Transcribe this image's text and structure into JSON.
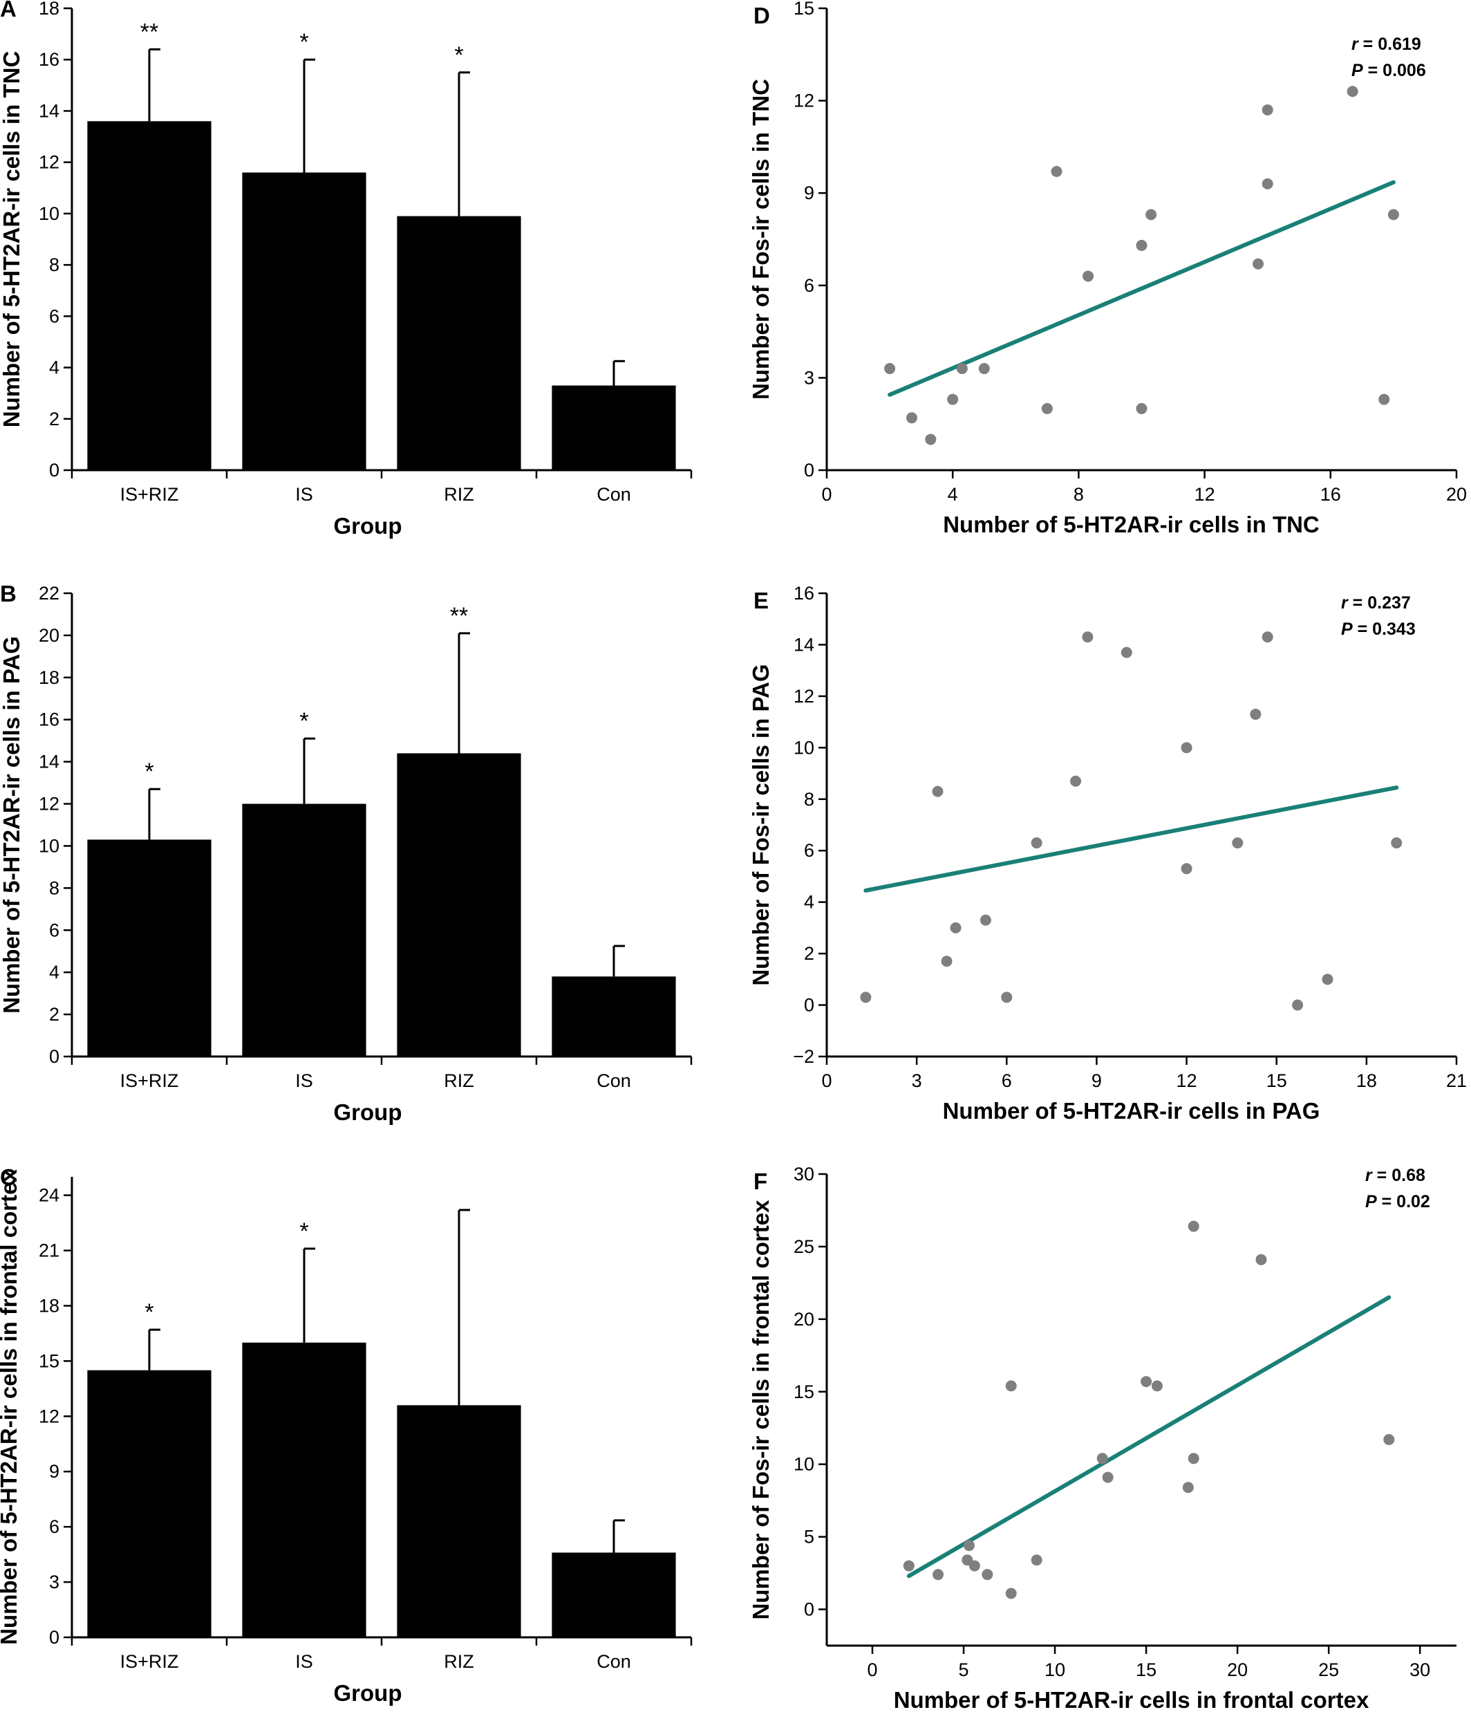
{
  "chart_data": [
    {
      "panel": "A",
      "type": "bar",
      "xlabel": "Group",
      "ylabel": "Number of 5-HT2AR-ir cells in TNC",
      "categories": [
        "IS+RIZ",
        "IS",
        "RIZ",
        "Con"
      ],
      "values": [
        13.6,
        11.6,
        9.9,
        3.3
      ],
      "errors": [
        2.8,
        4.4,
        5.6,
        0.95
      ],
      "significance": [
        "**",
        "*",
        "*",
        ""
      ],
      "ylim": [
        0,
        18
      ],
      "yticks": [
        "0",
        "2",
        "4",
        "6",
        "8",
        "10",
        "12",
        "14",
        "16",
        "18"
      ]
    },
    {
      "panel": "B",
      "type": "bar",
      "xlabel": "Group",
      "ylabel": "Number of 5-HT2AR-ir cells in PAG",
      "categories": [
        "IS+RIZ",
        "IS",
        "RIZ",
        "Con"
      ],
      "values": [
        10.3,
        12.0,
        14.4,
        3.8
      ],
      "errors": [
        2.4,
        3.1,
        5.7,
        1.45
      ],
      "significance": [
        "*",
        "*",
        "**",
        ""
      ],
      "ylim": [
        0,
        22
      ],
      "yticks": [
        "0",
        "2",
        "4",
        "6",
        "8",
        "10",
        "12",
        "14",
        "16",
        "18",
        "20",
        "22"
      ]
    },
    {
      "panel": "C",
      "type": "bar",
      "xlabel": "Group",
      "ylabel": "Number of 5-HT2AR-ir cells in frontal cortex",
      "categories": [
        "IS+RIZ",
        "IS",
        "RIZ",
        "Con"
      ],
      "values": [
        14.5,
        16.0,
        12.6,
        4.6
      ],
      "errors": [
        2.2,
        5.1,
        10.6,
        1.75
      ],
      "significance": [
        "*",
        "*",
        "",
        ""
      ],
      "ylim": [
        0,
        25
      ],
      "yticks": [
        "0",
        "3",
        "6",
        "9",
        "12",
        "15",
        "18",
        "21",
        "24"
      ]
    },
    {
      "panel": "D",
      "type": "scatter",
      "xlabel": "Number of 5-HT2AR-ir cells in TNC",
      "ylabel": "Number of Fos-ir cells in TNC",
      "xlim": [
        0,
        20
      ],
      "ylim": [
        0,
        15
      ],
      "xticks": [
        "0",
        "4",
        "8",
        "12",
        "16",
        "20"
      ],
      "yticks": [
        "0",
        "3",
        "6",
        "9",
        "12",
        "15"
      ],
      "points": [
        [
          2.0,
          3.3
        ],
        [
          2.7,
          1.7
        ],
        [
          3.3,
          1.0
        ],
        [
          4.0,
          2.3
        ],
        [
          4.3,
          3.3
        ],
        [
          5.0,
          3.3
        ],
        [
          7.0,
          2.0
        ],
        [
          7.3,
          9.7
        ],
        [
          8.3,
          6.3
        ],
        [
          10.0,
          7.3
        ],
        [
          10.0,
          2.0
        ],
        [
          10.3,
          8.3
        ],
        [
          13.7,
          6.7
        ],
        [
          14.0,
          11.7
        ],
        [
          14.0,
          9.3
        ],
        [
          16.7,
          12.3
        ],
        [
          17.7,
          2.3
        ],
        [
          18.0,
          8.3
        ]
      ],
      "fit_line": [
        [
          2.0,
          2.45
        ],
        [
          18.0,
          9.35
        ]
      ],
      "stats": {
        "r_label": "r",
        "r_value": " = 0.619",
        "p_label": "P",
        "p_value": " = 0.006"
      },
      "fit_color": "#1a8077"
    },
    {
      "panel": "E",
      "type": "scatter",
      "xlabel": "Number of 5-HT2AR-ir cells in PAG",
      "ylabel": "Number of Fos-ir cells in PAG",
      "xlim": [
        0,
        21
      ],
      "ylim": [
        -2,
        16
      ],
      "xticks": [
        "0",
        "3",
        "6",
        "9",
        "12",
        "15",
        "18",
        "21"
      ],
      "yticks": [
        "−2",
        "0",
        "2",
        "4",
        "6",
        "8",
        "10",
        "12",
        "14",
        "16"
      ],
      "points": [
        [
          1.3,
          0.3
        ],
        [
          3.7,
          8.3
        ],
        [
          4.0,
          1.7
        ],
        [
          4.3,
          3.0
        ],
        [
          5.3,
          3.3
        ],
        [
          6.0,
          0.3
        ],
        [
          7.0,
          6.3
        ],
        [
          8.3,
          8.7
        ],
        [
          8.7,
          14.3
        ],
        [
          10.0,
          13.7
        ],
        [
          12.0,
          10.0
        ],
        [
          12.0,
          5.3
        ],
        [
          13.7,
          6.3
        ],
        [
          14.3,
          11.3
        ],
        [
          14.7,
          14.3
        ],
        [
          15.7,
          0.0
        ],
        [
          16.7,
          1.0
        ],
        [
          19.0,
          6.3
        ]
      ],
      "fit_line": [
        [
          1.3,
          4.45
        ],
        [
          19.0,
          8.45
        ]
      ],
      "stats": {
        "r_label": "r",
        "r_value": " = 0.237",
        "p_label": "P",
        "p_value": " = 0.343"
      },
      "fit_color": "#1a8077"
    },
    {
      "panel": "F",
      "type": "scatter",
      "xlabel": "Number of 5-HT2AR-ir cells in frontal cortex",
      "ylabel": "Number of Fos-ir cells in frontal cortex",
      "xlim": [
        -2.5,
        32
      ],
      "ylim": [
        -2.5,
        30
      ],
      "xticks": [
        "0",
        "5",
        "10",
        "15",
        "20",
        "25",
        "30"
      ],
      "yticks": [
        "0",
        "5",
        "10",
        "15",
        "20",
        "25",
        "30"
      ],
      "points": [
        [
          2.0,
          3.0
        ],
        [
          3.6,
          2.4
        ],
        [
          5.2,
          3.4
        ],
        [
          5.3,
          4.4
        ],
        [
          5.6,
          3.0
        ],
        [
          6.3,
          2.4
        ],
        [
          7.6,
          1.1
        ],
        [
          7.6,
          15.4
        ],
        [
          9.0,
          3.4
        ],
        [
          12.6,
          10.4
        ],
        [
          12.9,
          9.1
        ],
        [
          15.0,
          15.7
        ],
        [
          15.6,
          15.4
        ],
        [
          17.3,
          8.4
        ],
        [
          17.6,
          10.4
        ],
        [
          17.6,
          26.4
        ],
        [
          21.3,
          24.1
        ],
        [
          28.3,
          11.7
        ]
      ],
      "fit_line": [
        [
          2.0,
          2.3
        ],
        [
          28.3,
          21.5
        ]
      ],
      "stats": {
        "r_label": "r",
        "r_value": " = 0.68",
        "p_label": "P",
        "p_value": " = 0.02"
      },
      "fit_color": "#1a8077"
    }
  ]
}
